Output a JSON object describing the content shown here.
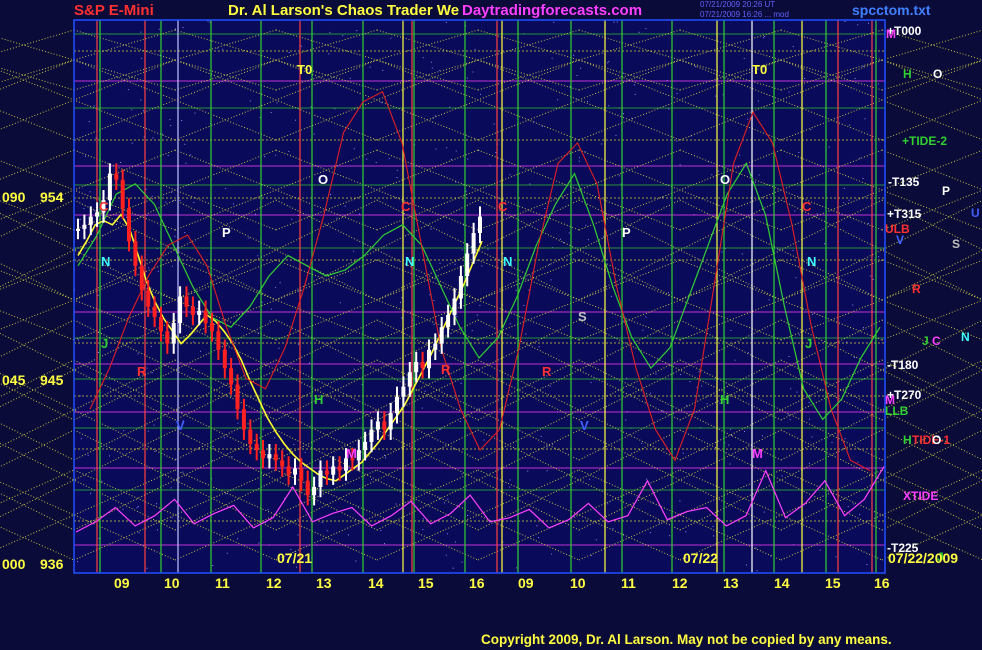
{
  "header": {
    "instrument": "S&P E-Mini",
    "title": "Dr. Al Larson's Chaos Trader We",
    "site": "Daytradingforecasts.com",
    "file": "spcctom.txt",
    "stamp1": "07/21/2009 20:26 UT",
    "stamp2": "07/21/2009 16:26 ... mod"
  },
  "footer": {
    "copyright": "Copyright 2009, Dr. Al Larson. May not be copied by any means."
  },
  "colors": {
    "background": "#0b0b3a",
    "price_up": "#ffffff",
    "price_down": "#ff2020",
    "hour_line": "#30d030",
    "flux_line": "#ffff30",
    "tide": "#ff40ff"
  },
  "chart_data": {
    "type": "line",
    "title": "Dr. Al Larson's Chaos Trader We",
    "xlabel": "",
    "ylabel": "",
    "ylim": [
      936,
      963
    ],
    "y_ticks": [
      {
        "left": "090",
        "value": "954"
      },
      {
        "left": "045",
        "value": "945"
      },
      {
        "left": "000",
        "value": "936"
      }
    ],
    "x_ticks": [
      "09",
      "10",
      "11",
      "12",
      "13",
      "14",
      "15",
      "16",
      "09",
      "10",
      "11",
      "12",
      "13",
      "14",
      "15",
      "16"
    ],
    "date_labels": [
      "07/21",
      "07/22",
      "07/22/2009"
    ],
    "grid": true,
    "legend": "right",
    "right_labels": [
      {
        "text": "+T000",
        "color": "#ffffff"
      },
      {
        "text": "M",
        "color": "#ff40ff"
      },
      {
        "text": "H",
        "color": "#30d030"
      },
      {
        "text": "O",
        "color": "#ffffff"
      },
      {
        "text": "+TIDE-2",
        "color": "#30d030"
      },
      {
        "text": "-T135",
        "color": "#ffffff"
      },
      {
        "text": "P",
        "color": "#ffffff"
      },
      {
        "text": "+T315",
        "color": "#ffffff"
      },
      {
        "text": "U",
        "color": "#4060ff"
      },
      {
        "text": "ULB",
        "color": "#ff3030"
      },
      {
        "text": "V",
        "color": "#4060ff"
      },
      {
        "text": "S",
        "color": "#c0c0c0"
      },
      {
        "text": "R",
        "color": "#ff3030"
      },
      {
        "text": "J",
        "color": "#30d030"
      },
      {
        "text": "C",
        "color": "#ff40ff"
      },
      {
        "text": "N",
        "color": "#40ffff"
      },
      {
        "text": "-T180",
        "color": "#ffffff"
      },
      {
        "text": "+T270",
        "color": "#ffffff"
      },
      {
        "text": "M",
        "color": "#ff40ff"
      },
      {
        "text": "LLB",
        "color": "#30d030"
      },
      {
        "text": "H",
        "color": "#30d030"
      },
      {
        "text": "TIDE-1",
        "color": "#ff3030"
      },
      {
        "text": "O",
        "color": "#ffffff"
      },
      {
        "text": "XTIDE",
        "color": "#ff40ff"
      },
      {
        "text": "-T225",
        "color": "#ffffff"
      },
      {
        "text": "J",
        "color": "#30d030"
      }
    ],
    "annotations": [
      {
        "text": "T0",
        "color": "#ffff40"
      },
      {
        "text": "T0",
        "color": "#ffff40"
      },
      {
        "text": "O",
        "color": "#ffffff"
      },
      {
        "text": "O",
        "color": "#ffffff"
      },
      {
        "text": "P",
        "color": "#ffffff"
      },
      {
        "text": "P",
        "color": "#ffffff"
      },
      {
        "text": "N",
        "color": "#40ffff"
      },
      {
        "text": "N",
        "color": "#40ffff"
      },
      {
        "text": "N",
        "color": "#40ffff"
      },
      {
        "text": "N",
        "color": "#40ffff"
      },
      {
        "text": "C",
        "color": "#ff3030"
      },
      {
        "text": "C",
        "color": "#ff3030"
      },
      {
        "text": "C",
        "color": "#ff3030"
      },
      {
        "text": "C",
        "color": "#ff3030"
      },
      {
        "text": "S",
        "color": "#c0c0c0"
      },
      {
        "text": "R",
        "color": "#ff3030"
      },
      {
        "text": "R",
        "color": "#ff3030"
      },
      {
        "text": "R",
        "color": "#ff3030"
      },
      {
        "text": "H",
        "color": "#30d030"
      },
      {
        "text": "H",
        "color": "#30d030"
      },
      {
        "text": "M",
        "color": "#ff40ff"
      },
      {
        "text": "M",
        "color": "#ff40ff"
      },
      {
        "text": "V",
        "color": "#4060ff"
      },
      {
        "text": "V",
        "color": "#4060ff"
      },
      {
        "text": "J",
        "color": "#30d030"
      },
      {
        "text": "J",
        "color": "#30d030"
      }
    ],
    "series": [
      {
        "values": [
          952.8,
          953.0,
          953.4,
          953.6,
          954.2,
          955.5,
          955.2,
          953.8,
          952.2,
          951.0,
          949.8,
          949.0,
          948.5,
          947.8,
          947.2,
          948.2,
          949.5,
          949.0,
          948.6,
          948.8,
          948.2,
          947.8,
          946.9,
          946.0,
          945.2,
          944.0,
          943.0,
          942.3,
          942.0,
          941.6,
          941.8,
          941.5,
          941.2,
          940.8,
          941.1,
          940.5,
          939.8,
          940.2,
          941.0,
          940.8,
          941.2,
          941.0,
          941.6,
          941.5,
          942.0,
          942.4,
          943.0,
          943.4,
          943.0,
          943.8,
          944.6,
          945.1,
          945.8,
          946.3,
          946.0,
          946.9,
          947.2,
          948.0,
          948.6,
          949.4,
          950.5,
          951.6,
          952.6,
          953.4
        ]
      },
      {
        "values": [
          951.5,
          952.2,
          953.0,
          953.2,
          953.0,
          953.5,
          952.8,
          951.5,
          950.2,
          949.2,
          948.4,
          947.8,
          947.2,
          947.6,
          948.1,
          948.6,
          948.3,
          947.8,
          947.2,
          946.4,
          945.4,
          944.5,
          943.6,
          942.9,
          942.3,
          941.8,
          941.4,
          941.1,
          940.8,
          940.6,
          940.5,
          940.8,
          941.1,
          941.4,
          941.9,
          942.4,
          943.0,
          943.6,
          944.2,
          945.0,
          945.8,
          946.6,
          947.5,
          948.4,
          949.3,
          950.2,
          951.2,
          952.2
        ]
      },
      {
        "values": [
          951.0,
          952.5,
          954.5,
          955.0,
          954.0,
          952.0,
          950.0,
          948.5,
          948.0,
          949.0,
          950.5,
          951.5,
          951.0,
          950.5,
          950.8,
          951.5,
          952.5,
          953.0,
          952.0,
          950.0,
          948.0,
          946.5,
          947.5,
          949.5,
          952.0,
          954.0,
          955.5,
          953.0,
          950.0,
          947.5,
          946.0,
          947.0,
          949.5,
          952.0,
          954.5,
          956.0,
          953.5,
          949.0,
          945.0,
          943.5,
          944.5,
          946.5,
          948.0
        ]
      },
      {
        "values": [
          944.0,
          946.0,
          948.5,
          950.5,
          952.0,
          952.5,
          951.0,
          948.0,
          945.5,
          945.0,
          947.0,
          950.0,
          953.5,
          957.5,
          959.0,
          959.5,
          957.0,
          952.0,
          947.0,
          944.0,
          942.0,
          943.0,
          947.0,
          952.0,
          956.0,
          957.0,
          955.0,
          950.0,
          946.0,
          943.0,
          941.5,
          944.0,
          950.0,
          956.0,
          958.5,
          957.0,
          953.0,
          948.0,
          944.0,
          941.5,
          941.0
        ]
      },
      {
        "values": [
          938.0,
          938.5,
          939.2,
          938.3,
          938.8,
          939.6,
          938.4,
          938.9,
          939.3,
          938.2,
          938.7,
          940.2,
          938.5,
          938.9,
          939.2,
          938.3,
          938.8,
          939.5,
          938.4,
          938.9,
          939.8,
          938.5,
          938.7,
          939.1,
          938.2,
          938.6,
          939.4,
          938.5,
          938.8,
          940.5,
          938.6,
          939.0,
          939.2,
          938.3,
          938.8,
          941.0,
          938.7,
          939.4,
          940.5,
          938.8,
          939.6,
          941.2
        ]
      }
    ]
  }
}
